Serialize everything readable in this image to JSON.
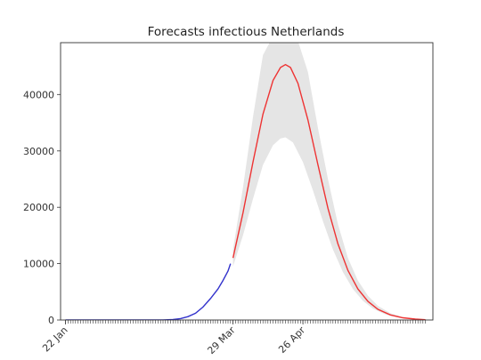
{
  "chart_data": {
    "type": "line",
    "title": "Forecasts infectious Netherlands",
    "xlabel": "",
    "ylabel": "",
    "x_axis": {
      "type": "date",
      "domain": [
        "2020-01-20",
        "2020-06-17"
      ],
      "tick_labels": [
        {
          "date": "2020-01-22",
          "label": "22 Jan"
        },
        {
          "date": "2020-03-29",
          "label": "29 Mar"
        },
        {
          "date": "2020-04-26",
          "label": "26 Apr"
        }
      ],
      "minor_ticks_daily": {
        "from": "2020-01-22",
        "to": "2020-06-14"
      }
    },
    "ylim": [
      0,
      49200
    ],
    "y_ticks": [
      0,
      10000,
      20000,
      30000,
      40000
    ],
    "grid": false,
    "legend": "none",
    "series": [
      {
        "role": "observed",
        "color": "#3333cc",
        "points": [
          [
            "2020-01-22",
            0
          ],
          [
            "2020-02-05",
            0
          ],
          [
            "2020-02-20",
            0
          ],
          [
            "2020-03-01",
            10
          ],
          [
            "2020-03-05",
            80
          ],
          [
            "2020-03-08",
            250
          ],
          [
            "2020-03-11",
            600
          ],
          [
            "2020-03-14",
            1200
          ],
          [
            "2020-03-17",
            2300
          ],
          [
            "2020-03-20",
            3800
          ],
          [
            "2020-03-23",
            5500
          ],
          [
            "2020-03-25",
            7000
          ],
          [
            "2020-03-27",
            8700
          ],
          [
            "2020-03-28",
            10000
          ]
        ]
      },
      {
        "role": "forecast",
        "color": "#ee3333",
        "points": [
          [
            "2020-03-29",
            11000
          ],
          [
            "2020-04-02",
            19000
          ],
          [
            "2020-04-06",
            28000
          ],
          [
            "2020-04-10",
            36500
          ],
          [
            "2020-04-14",
            42500
          ],
          [
            "2020-04-17",
            44800
          ],
          [
            "2020-04-19",
            45300
          ],
          [
            "2020-04-21",
            44800
          ],
          [
            "2020-04-24",
            42000
          ],
          [
            "2020-04-28",
            35500
          ],
          [
            "2020-05-02",
            27500
          ],
          [
            "2020-05-06",
            19800
          ],
          [
            "2020-05-10",
            13500
          ],
          [
            "2020-05-14",
            8800
          ],
          [
            "2020-05-18",
            5500
          ],
          [
            "2020-05-22",
            3300
          ],
          [
            "2020-05-26",
            1900
          ],
          [
            "2020-05-31",
            900
          ],
          [
            "2020-06-05",
            400
          ],
          [
            "2020-06-10",
            150
          ],
          [
            "2020-06-14",
            50
          ]
        ]
      }
    ],
    "band": {
      "color": "#e5e5e5",
      "upper": [
        [
          "2020-03-29",
          12500
        ],
        [
          "2020-04-02",
          23500
        ],
        [
          "2020-04-06",
          36000
        ],
        [
          "2020-04-10",
          47000
        ],
        [
          "2020-04-13",
          49500
        ],
        [
          "2020-04-24",
          49500
        ],
        [
          "2020-04-28",
          44000
        ],
        [
          "2020-05-02",
          34000
        ],
        [
          "2020-05-06",
          25000
        ],
        [
          "2020-05-10",
          17000
        ],
        [
          "2020-05-14",
          11000
        ],
        [
          "2020-05-18",
          7000
        ],
        [
          "2020-05-22",
          4300
        ],
        [
          "2020-05-26",
          2500
        ],
        [
          "2020-05-31",
          1200
        ],
        [
          "2020-06-05",
          500
        ],
        [
          "2020-06-10",
          200
        ],
        [
          "2020-06-14",
          70
        ]
      ],
      "lower": [
        [
          "2020-03-29",
          9500
        ],
        [
          "2020-04-02",
          15000
        ],
        [
          "2020-04-06",
          21500
        ],
        [
          "2020-04-10",
          27500
        ],
        [
          "2020-04-14",
          31000
        ],
        [
          "2020-04-17",
          32200
        ],
        [
          "2020-04-19",
          32400
        ],
        [
          "2020-04-22",
          31500
        ],
        [
          "2020-04-26",
          28000
        ],
        [
          "2020-04-30",
          23000
        ],
        [
          "2020-05-04",
          17500
        ],
        [
          "2020-05-08",
          12500
        ],
        [
          "2020-05-12",
          8500
        ],
        [
          "2020-05-16",
          5500
        ],
        [
          "2020-05-20",
          3400
        ],
        [
          "2020-05-24",
          2000
        ],
        [
          "2020-05-29",
          1000
        ],
        [
          "2020-06-03",
          450
        ],
        [
          "2020-06-08",
          180
        ],
        [
          "2020-06-14",
          40
        ]
      ]
    }
  }
}
